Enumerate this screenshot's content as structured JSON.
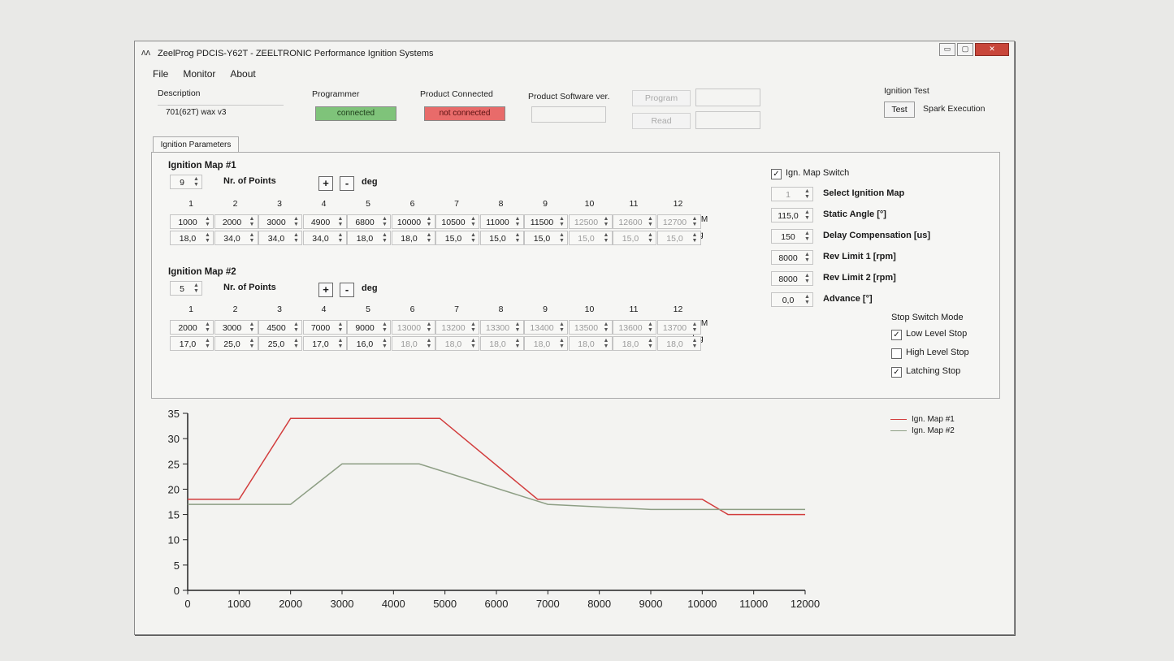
{
  "window": {
    "title": "ZeelProg PDCIS-Y62T - ZEELTRONIC Performance Ignition Systems",
    "controls": [
      "▭",
      "▢",
      "✕"
    ]
  },
  "menu": [
    "File",
    "Monitor",
    "About"
  ],
  "header": {
    "description_label": "Description",
    "description_value": "701(62T) wax v3",
    "programmer_label": "Programmer",
    "programmer_status": "connected",
    "product_connected_label": "Product Connected",
    "product_status": "not connected",
    "software_ver_label": "Product Software ver.",
    "program_button": "Program",
    "read_button": "Read",
    "ignition_test_label": "Ignition Test",
    "test_button": "Test",
    "spark_label": "Spark Execution"
  },
  "tab": "Ignition Parameters",
  "map1": {
    "title": "Ignition Map #1",
    "points": "9",
    "points_label": "Nr. of Points",
    "unit_label": "deg",
    "plus": "+",
    "minus": "-",
    "cols": [
      "1",
      "2",
      "3",
      "4",
      "5",
      "6",
      "7",
      "8",
      "9",
      "10",
      "11",
      "12"
    ],
    "rpm": [
      "1000",
      "2000",
      "3000",
      "4900",
      "6800",
      "10000",
      "10500",
      "11000",
      "11500",
      "12500",
      "12600",
      "12700"
    ],
    "deg": [
      "18,0",
      "34,0",
      "34,0",
      "34,0",
      "18,0",
      "18,0",
      "15,0",
      "15,0",
      "15,0",
      "15,0",
      "15,0",
      "15,0"
    ],
    "rpm_unit": "RPM",
    "deg_unit": "deg"
  },
  "map2": {
    "title": "Ignition Map #2",
    "points": "5",
    "points_label": "Nr. of Points",
    "unit_label": "deg",
    "plus": "+",
    "minus": "-",
    "cols": [
      "1",
      "2",
      "3",
      "4",
      "5",
      "6",
      "7",
      "8",
      "9",
      "10",
      "11",
      "12"
    ],
    "rpm": [
      "2000",
      "3000",
      "4500",
      "7000",
      "9000",
      "13000",
      "13200",
      "13300",
      "13400",
      "13500",
      "13600",
      "13700"
    ],
    "deg": [
      "17,0",
      "25,0",
      "25,0",
      "17,0",
      "16,0",
      "18,0",
      "18,0",
      "18,0",
      "18,0",
      "18,0",
      "18,0",
      "18,0"
    ],
    "rpm_unit": "RPM",
    "deg_unit": "deg"
  },
  "right": {
    "map_switch_label": "Ign. Map Switch",
    "select_map_value": "1",
    "select_map_label": "Select Ignition Map",
    "static_angle_value": "115,0",
    "static_angle_label": "Static Angle [°]",
    "delay_value": "150",
    "delay_label": "Delay Compensation [us]",
    "rev1_value": "8000",
    "rev1_label": "Rev Limit 1 [rpm]",
    "rev2_value": "8000",
    "rev2_label": "Rev Limit 2 [rpm]",
    "advance_value": "0,0",
    "advance_label": "Advance [°]",
    "stop_mode_label": "Stop Switch Mode",
    "low_label": "Low Level Stop",
    "high_label": "High Level Stop",
    "latching_label": "Latching Stop",
    "check_mark": "✓"
  },
  "colors": {
    "map1": "#d23c3c",
    "map2": "#8d9e84",
    "connected": "#7fc37a",
    "not_connected": "#e86b6a"
  },
  "chart_data": {
    "type": "line",
    "x_ticks": [
      "0",
      "1000",
      "2000",
      "3000",
      "4000",
      "5000",
      "6000",
      "7000",
      "8000",
      "9000",
      "10000",
      "11000",
      "12000"
    ],
    "y_ticks": [
      "0",
      "5",
      "10",
      "15",
      "20",
      "25",
      "30",
      "35"
    ],
    "xlim": [
      0,
      12000
    ],
    "ylim": [
      0,
      35
    ],
    "series": [
      {
        "name": "Ign. Map #1",
        "x": [
          0,
          1000,
          2000,
          3000,
          4900,
          6800,
          10000,
          10500,
          11000,
          11500,
          12000
        ],
        "y": [
          18,
          18,
          34,
          34,
          34,
          18,
          18,
          15,
          15,
          15,
          15
        ]
      },
      {
        "name": "Ign. Map #2",
        "x": [
          0,
          2000,
          3000,
          4500,
          7000,
          9000,
          12000
        ],
        "y": [
          17,
          17,
          25,
          25,
          17,
          16,
          16
        ]
      }
    ]
  }
}
